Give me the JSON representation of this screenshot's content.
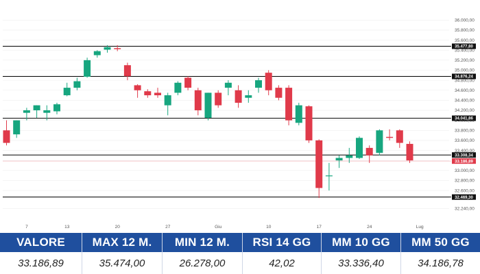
{
  "chart_data": {
    "type": "candlestick",
    "colors": {
      "up": "#17a67f",
      "down": "#e03a4a",
      "level_line": "#000000",
      "level_tag": "#111111",
      "last_tag": "#e03a4a",
      "grid": "#eeeeee"
    },
    "ylim": [
      32000,
      36100
    ],
    "y_ticks": [
      32240,
      32460,
      32600,
      32800,
      33000,
      33200,
      33400,
      33600,
      33800,
      34000,
      34200,
      34400,
      34600,
      34800,
      35000,
      35200,
      35400,
      35600,
      35800,
      36000
    ],
    "y_tick_labels": [
      "32.240,00",
      "32.460,00",
      "32.600,00",
      "32.800,00",
      "33.000,00",
      "33.200,00",
      "33.400,00",
      "33.600,00",
      "33.800,00",
      "34.000,00",
      "34.200,00",
      "34.400,00",
      "34.600,00",
      "34.800,00",
      "35.000,00",
      "35.200,00",
      "35.400,00",
      "35.600,00",
      "35.800,00",
      "36.000,00"
    ],
    "x_ticks": [
      {
        "index": 2,
        "label": "7"
      },
      {
        "index": 6,
        "label": "13"
      },
      {
        "index": 11,
        "label": "20"
      },
      {
        "index": 16,
        "label": "27"
      },
      {
        "index": 21,
        "label": "Giu"
      },
      {
        "index": 26,
        "label": "10"
      },
      {
        "index": 31,
        "label": "17"
      },
      {
        "index": 36,
        "label": "24"
      },
      {
        "index": 41,
        "label": "Lug"
      }
    ],
    "levels": [
      {
        "value": 35477.8,
        "label": "35.477,80"
      },
      {
        "value": 34876.24,
        "label": "34.876,24"
      },
      {
        "value": 34041.86,
        "label": "34.041,86"
      },
      {
        "value": 33308.34,
        "label": "33.308,34"
      },
      {
        "value": 32469.3,
        "label": "32.469,30"
      }
    ],
    "last_price": {
      "value": 33186.89,
      "label": "33.186,89"
    },
    "candles": [
      {
        "o": 33800,
        "h": 34000,
        "l": 33500,
        "c": 33550
      },
      {
        "o": 33720,
        "h": 34000,
        "l": 33650,
        "c": 34000
      },
      {
        "o": 34150,
        "h": 34250,
        "l": 34000,
        "c": 34200
      },
      {
        "o": 34200,
        "h": 34300,
        "l": 34050,
        "c": 34300
      },
      {
        "o": 34150,
        "h": 34300,
        "l": 34000,
        "c": 34200
      },
      {
        "o": 34180,
        "h": 34350,
        "l": 34120,
        "c": 34320
      },
      {
        "o": 34500,
        "h": 34750,
        "l": 34480,
        "c": 34650
      },
      {
        "o": 34650,
        "h": 34850,
        "l": 34600,
        "c": 34780
      },
      {
        "o": 34870,
        "h": 35250,
        "l": 34850,
        "c": 35200
      },
      {
        "o": 35300,
        "h": 35400,
        "l": 35250,
        "c": 35380
      },
      {
        "o": 35410,
        "h": 35500,
        "l": 35350,
        "c": 35460
      },
      {
        "o": 35440,
        "h": 35500,
        "l": 35380,
        "c": 35420
      },
      {
        "o": 35100,
        "h": 35150,
        "l": 34800,
        "c": 34880
      },
      {
        "o": 34700,
        "h": 34720,
        "l": 34450,
        "c": 34600
      },
      {
        "o": 34580,
        "h": 34620,
        "l": 34450,
        "c": 34500
      },
      {
        "o": 34550,
        "h": 34650,
        "l": 34450,
        "c": 34500
      },
      {
        "o": 34300,
        "h": 34550,
        "l": 34100,
        "c": 34500
      },
      {
        "o": 34550,
        "h": 34780,
        "l": 34500,
        "c": 34750
      },
      {
        "o": 34850,
        "h": 34880,
        "l": 34600,
        "c": 34650
      },
      {
        "o": 34600,
        "h": 34650,
        "l": 34100,
        "c": 34200
      },
      {
        "o": 34050,
        "h": 34550,
        "l": 34000,
        "c": 34550
      },
      {
        "o": 34550,
        "h": 34600,
        "l": 34250,
        "c": 34300
      },
      {
        "o": 34650,
        "h": 34800,
        "l": 34500,
        "c": 34750
      },
      {
        "o": 34600,
        "h": 34700,
        "l": 34250,
        "c": 34350
      },
      {
        "o": 34450,
        "h": 34600,
        "l": 34350,
        "c": 34500
      },
      {
        "o": 34650,
        "h": 34850,
        "l": 34550,
        "c": 34800
      },
      {
        "o": 34950,
        "h": 35000,
        "l": 34500,
        "c": 34600
      },
      {
        "o": 34650,
        "h": 34700,
        "l": 34400,
        "c": 34450
      },
      {
        "o": 34650,
        "h": 34700,
        "l": 33900,
        "c": 34000
      },
      {
        "o": 33950,
        "h": 34350,
        "l": 33900,
        "c": 34300
      },
      {
        "o": 34280,
        "h": 34300,
        "l": 33550,
        "c": 33600
      },
      {
        "o": 33600,
        "h": 33620,
        "l": 32450,
        "c": 32650
      },
      {
        "o": 32900,
        "h": 33150,
        "l": 32600,
        "c": 32900
      },
      {
        "o": 33200,
        "h": 33300,
        "l": 33050,
        "c": 33250
      },
      {
        "o": 33250,
        "h": 33450,
        "l": 33150,
        "c": 33300
      },
      {
        "o": 33250,
        "h": 33680,
        "l": 33230,
        "c": 33650
      },
      {
        "o": 33450,
        "h": 33500,
        "l": 33150,
        "c": 33300
      },
      {
        "o": 33350,
        "h": 33820,
        "l": 33300,
        "c": 33800
      },
      {
        "o": 33670,
        "h": 33820,
        "l": 33600,
        "c": 33650
      },
      {
        "o": 33800,
        "h": 33820,
        "l": 33450,
        "c": 33550
      },
      {
        "o": 33530,
        "h": 33580,
        "l": 33150,
        "c": 33200
      }
    ]
  },
  "stats": [
    {
      "label": "VALORE",
      "value": "33.186,89"
    },
    {
      "label": "MAX 12 M.",
      "value": "35.474,00"
    },
    {
      "label": "MIN 12 M.",
      "value": "26.278,00"
    },
    {
      "label": "RSI 14 GG",
      "value": "42,02"
    },
    {
      "label": "MM 10 GG",
      "value": "33.336,40"
    },
    {
      "label": "MM 50 GG",
      "value": "34.186,78"
    }
  ]
}
